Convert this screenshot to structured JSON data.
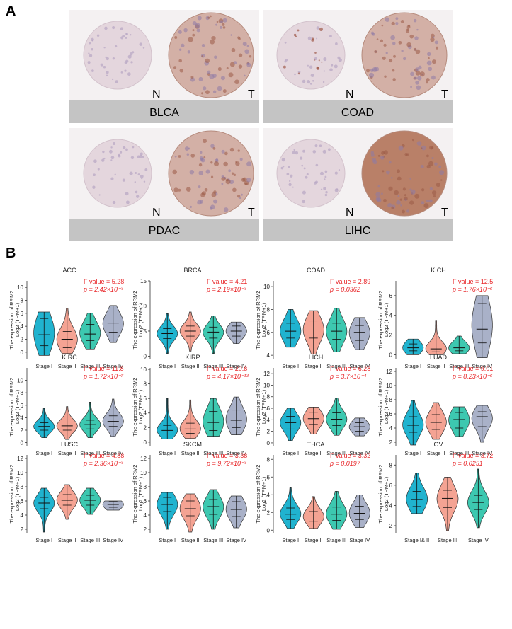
{
  "panels": {
    "a": "A",
    "b": "B"
  },
  "ihc": [
    {
      "cancer": "BLCA",
      "normal_label": "N",
      "tumor_label": "T"
    },
    {
      "cancer": "COAD",
      "normal_label": "N",
      "tumor_label": "T"
    },
    {
      "cancer": "PDAC",
      "normal_label": "N",
      "tumor_label": "T"
    },
    {
      "cancer": "LIHC",
      "normal_label": "N",
      "tumor_label": "T"
    }
  ],
  "colors": {
    "stage1": "#20B3CF",
    "stage2": "#F4A393",
    "stage3": "#3DC8B0",
    "stage4": "#A9B1C8",
    "stat": "#E8272A",
    "ihc_bar": "#C4C4C4"
  },
  "chart_data": [
    {
      "type": "violin",
      "title": "ACC",
      "ylabel": "The expression of RRM2",
      "ylabel2": "Log2 (TPM+1)",
      "categories": [
        "Stage I",
        "Stage II",
        "Stage III",
        "Stage IV"
      ],
      "ylim": [
        -1,
        11
      ],
      "yticks": [
        0,
        2,
        4,
        6,
        8,
        10
      ],
      "f_text": "F value = 5.28",
      "p_text": "p = 2.42×10⁻³",
      "series": [
        {
          "median": 2.7,
          "q1": 1.0,
          "q3": 5.2,
          "min": -0.5,
          "max": 6.2
        },
        {
          "median": 2.0,
          "q1": 0.7,
          "q3": 3.2,
          "min": -0.2,
          "max": 6.8
        },
        {
          "median": 2.8,
          "q1": 1.8,
          "q3": 4.3,
          "min": 0.5,
          "max": 6.0
        },
        {
          "median": 4.5,
          "q1": 3.1,
          "q3": 5.6,
          "min": 1.5,
          "max": 7.2
        }
      ]
    },
    {
      "type": "violin",
      "title": "BRCA",
      "ylabel": "The expression of RRM2",
      "ylabel2": "Log2 (TPM+1)",
      "categories": [
        "Stage I",
        "Stage II",
        "Stage III",
        "Stage IV"
      ],
      "ylim": [
        -0.5,
        15
      ],
      "yticks": [
        0,
        5,
        10,
        15
      ],
      "f_text": "F value = 4.21",
      "p_text": "p = 2.19×10⁻³",
      "series": [
        {
          "median": 4.5,
          "q1": 3.5,
          "q3": 5.5,
          "min": 0.5,
          "max": 8.5
        },
        {
          "median": 5.0,
          "q1": 4.0,
          "q3": 6.0,
          "min": 1.0,
          "max": 8.8
        },
        {
          "median": 4.8,
          "q1": 3.6,
          "q3": 5.8,
          "min": 0.5,
          "max": 8.0
        },
        {
          "median": 5.0,
          "q1": 4.0,
          "q3": 6.0,
          "min": 2.5,
          "max": 6.8
        }
      ]
    },
    {
      "type": "violin",
      "title": "COAD",
      "ylabel": "The expression of RRM2",
      "ylabel2": "Log2 (TPM+1)",
      "categories": [
        "Stage I",
        "Stage II",
        "Stage III",
        "Stage IV"
      ],
      "ylim": [
        3.7,
        10.5
      ],
      "yticks": [
        4,
        6,
        8,
        10
      ],
      "f_text": "F value = 2.89",
      "p_text": "p = 0.0362",
      "series": [
        {
          "median": 6.1,
          "q1": 5.5,
          "q3": 6.8,
          "min": 4.7,
          "max": 8.0
        },
        {
          "median": 6.2,
          "q1": 5.5,
          "q3": 7.0,
          "min": 4.1,
          "max": 7.9
        },
        {
          "median": 6.1,
          "q1": 5.4,
          "q3": 6.8,
          "min": 4.3,
          "max": 8.1
        },
        {
          "median": 6.0,
          "q1": 5.3,
          "q3": 6.6,
          "min": 4.5,
          "max": 7.3
        }
      ]
    },
    {
      "type": "violin",
      "title": "KICH",
      "ylabel": "The expression of RRM2",
      "ylabel2": "Log2 (TPM+1)",
      "categories": [
        "Stage I",
        "Stage II",
        "Stage III",
        "Stage IV"
      ],
      "ylim": [
        -0.4,
        7.5
      ],
      "yticks": [
        0,
        2,
        4,
        6
      ],
      "f_text": "F value = 12.5",
      "p_text": "p = 1.76×10⁻⁶",
      "series": [
        {
          "median": 0.7,
          "q1": 0.4,
          "q3": 1.1,
          "min": 0.0,
          "max": 1.6
        },
        {
          "median": 0.6,
          "q1": 0.3,
          "q3": 1.0,
          "min": 0.0,
          "max": 3.5
        },
        {
          "median": 0.7,
          "q1": 0.4,
          "q3": 1.0,
          "min": 0.1,
          "max": 1.9
        },
        {
          "median": 2.6,
          "q1": 1.2,
          "q3": 5.2,
          "min": -0.3,
          "max": 6.0
        }
      ]
    },
    {
      "type": "violin",
      "title": "KIRC",
      "ylabel": "The expression of RRM2",
      "ylabel2": "Log2 (TPM+1)",
      "categories": [
        "Stage I",
        "Stage II",
        "Stage III",
        "Stage IV"
      ],
      "ylim": [
        -0.5,
        12
      ],
      "yticks": [
        0,
        2,
        4,
        6,
        8,
        10
      ],
      "f_text": "F value = 11.8",
      "p_text": "p = 1.72×10⁻⁷",
      "series": [
        {
          "median": 2.6,
          "q1": 2.0,
          "q3": 3.2,
          "min": 0.8,
          "max": 5.5
        },
        {
          "median": 2.7,
          "q1": 2.0,
          "q3": 3.3,
          "min": 0.5,
          "max": 5.8
        },
        {
          "median": 2.9,
          "q1": 2.2,
          "q3": 3.6,
          "min": 0.8,
          "max": 6.5
        },
        {
          "median": 3.4,
          "q1": 2.6,
          "q3": 4.3,
          "min": 1.0,
          "max": 7.0
        }
      ]
    },
    {
      "type": "violin",
      "title": "KIRP",
      "ylabel": "The expression of RRM2",
      "ylabel2": "Log2 (TPM+1)",
      "categories": [
        "Stage I",
        "Stage II",
        "Stage III",
        "Stage IV"
      ],
      "ylim": [
        -0.5,
        10.2
      ],
      "yticks": [
        0,
        2,
        4,
        6,
        8,
        10
      ],
      "f_text": "F value = 20.8",
      "p_text": "p = 4.17×10⁻¹²",
      "series": [
        {
          "median": 1.6,
          "q1": 1.1,
          "q3": 2.3,
          "min": 0.4,
          "max": 6.0
        },
        {
          "median": 1.8,
          "q1": 1.2,
          "q3": 2.6,
          "min": 0.5,
          "max": 5.8
        },
        {
          "median": 2.7,
          "q1": 1.6,
          "q3": 4.2,
          "min": 0.8,
          "max": 6.0
        },
        {
          "median": 3.0,
          "q1": 2.0,
          "q3": 4.4,
          "min": 1.0,
          "max": 6.2
        }
      ]
    },
    {
      "type": "violin",
      "title": "LICH",
      "ylabel": "The expression of RRM2",
      "ylabel2": "Log2 (TPM+1)",
      "categories": [
        "Stage I",
        "Stage II",
        "Stage III",
        "Stage IV"
      ],
      "ylim": [
        -0.5,
        13
      ],
      "yticks": [
        0,
        2,
        4,
        6,
        8,
        10,
        12
      ],
      "f_text": "F value = 6.28",
      "p_text": "p = 3.7×10⁻⁴",
      "series": [
        {
          "median": 3.5,
          "q1": 2.4,
          "q3": 4.6,
          "min": 0.4,
          "max": 6.0
        },
        {
          "median": 4.2,
          "q1": 3.2,
          "q3": 5.3,
          "min": 1.5,
          "max": 6.2
        },
        {
          "median": 4.1,
          "q1": 3.0,
          "q3": 5.2,
          "min": 1.3,
          "max": 7.8
        },
        {
          "median": 2.8,
          "q1": 2.0,
          "q3": 3.5,
          "min": 1.2,
          "max": 4.3
        }
      ]
    },
    {
      "type": "violin",
      "title": "LUAD",
      "ylabel": "The expression of RRM2",
      "ylabel2": "Log2 (TPM+1)",
      "categories": [
        "Stage I",
        "Stage II",
        "Stage III",
        "Stage IV"
      ],
      "ylim": [
        1.5,
        12.5
      ],
      "yticks": [
        2,
        4,
        6,
        8,
        10,
        12
      ],
      "f_text": "F value = 9.01",
      "p_text": "p = 8.23×10⁻⁶",
      "series": [
        {
          "median": 4.4,
          "q1": 3.4,
          "q3": 5.6,
          "min": 1.6,
          "max": 7.9
        },
        {
          "median": 4.8,
          "q1": 3.8,
          "q3": 5.9,
          "min": 2.4,
          "max": 7.6
        },
        {
          "median": 5.2,
          "q1": 4.0,
          "q3": 6.2,
          "min": 2.8,
          "max": 7.0
        },
        {
          "median": 5.6,
          "q1": 4.2,
          "q3": 6.3,
          "min": 2.0,
          "max": 7.2
        }
      ]
    },
    {
      "type": "violin",
      "title": "LUSC",
      "ylabel": "The expression of RRM2",
      "ylabel2": "Log2 (TPM+1)",
      "categories": [
        "Stage I",
        "Stage II",
        "Stage III",
        "Stage IV"
      ],
      "ylim": [
        1.5,
        12.5
      ],
      "yticks": [
        2,
        4,
        6,
        8,
        10,
        12
      ],
      "f_text": "F value = 4.88",
      "p_text": "p = 2.36×10⁻³",
      "series": [
        {
          "median": 5.7,
          "q1": 4.9,
          "q3": 6.5,
          "min": 1.6,
          "max": 7.8
        },
        {
          "median": 6.1,
          "q1": 5.4,
          "q3": 6.9,
          "min": 3.4,
          "max": 8.3
        },
        {
          "median": 6.1,
          "q1": 5.4,
          "q3": 6.8,
          "min": 4.1,
          "max": 7.8
        },
        {
          "median": 5.5,
          "q1": 5.1,
          "q3": 5.9,
          "min": 4.7,
          "max": 6.0
        }
      ]
    },
    {
      "type": "violin",
      "title": "SKCM",
      "ylabel": "The expression of RRM2",
      "ylabel2": "Log2 (TPM+1)",
      "categories": [
        "Stage I",
        "Stage II",
        "Stage III",
        "Stage IV"
      ],
      "ylim": [
        1.5,
        12.5
      ],
      "yticks": [
        2,
        4,
        6,
        8,
        10,
        12
      ],
      "f_text": "F value = 3.38",
      "p_text": "p = 9.72×10⁻³",
      "series": [
        {
          "median": 5.5,
          "q1": 4.5,
          "q3": 6.5,
          "min": 2.0,
          "max": 7.2
        },
        {
          "median": 4.9,
          "q1": 3.9,
          "q3": 6.0,
          "min": 1.6,
          "max": 7.0
        },
        {
          "median": 5.2,
          "q1": 4.1,
          "q3": 6.2,
          "min": 2.0,
          "max": 7.6
        },
        {
          "median": 4.8,
          "q1": 3.8,
          "q3": 5.9,
          "min": 2.2,
          "max": 6.7
        }
      ]
    },
    {
      "type": "violin",
      "title": "THCA",
      "ylabel": "The expression of RRM2",
      "ylabel2": "Log2 (TPM+1)",
      "categories": [
        "Stage I",
        "Stage II",
        "Stage III",
        "Stage IV"
      ],
      "ylim": [
        -0.3,
        8.5
      ],
      "yticks": [
        0,
        2,
        4,
        6,
        8
      ],
      "f_text": "F value = 3.32",
      "p_text": "p = 0.0197",
      "series": [
        {
          "median": 1.8,
          "q1": 1.2,
          "q3": 2.5,
          "min": 0.2,
          "max": 4.8
        },
        {
          "median": 1.5,
          "q1": 1.0,
          "q3": 2.1,
          "min": 0.2,
          "max": 3.8
        },
        {
          "median": 1.8,
          "q1": 1.1,
          "q3": 2.6,
          "min": 0.1,
          "max": 4.4
        },
        {
          "median": 1.9,
          "q1": 1.2,
          "q3": 2.7,
          "min": 0.3,
          "max": 4.0
        }
      ]
    },
    {
      "type": "violin",
      "title": "OV",
      "ylabel": "The expression of RRM2",
      "ylabel2": "Log2 (TPM+1)",
      "categories": [
        "Stage I& II",
        "Stage III",
        "Stage IV"
      ],
      "ylim": [
        1.3,
        9
      ],
      "yticks": [
        2,
        4,
        6,
        8
      ],
      "f_text": "F value = 3.72",
      "p_text": "p = 0.0251",
      "series": [
        {
          "median": 4.6,
          "q1": 3.9,
          "q3": 5.4,
          "min": 3.2,
          "max": 7.2
        },
        {
          "median": 4.7,
          "q1": 3.8,
          "q3": 5.5,
          "min": 1.5,
          "max": 6.8
        },
        {
          "median": 4.3,
          "q1": 3.6,
          "q3": 5.0,
          "min": 1.8,
          "max": 7.6
        }
      ]
    }
  ]
}
